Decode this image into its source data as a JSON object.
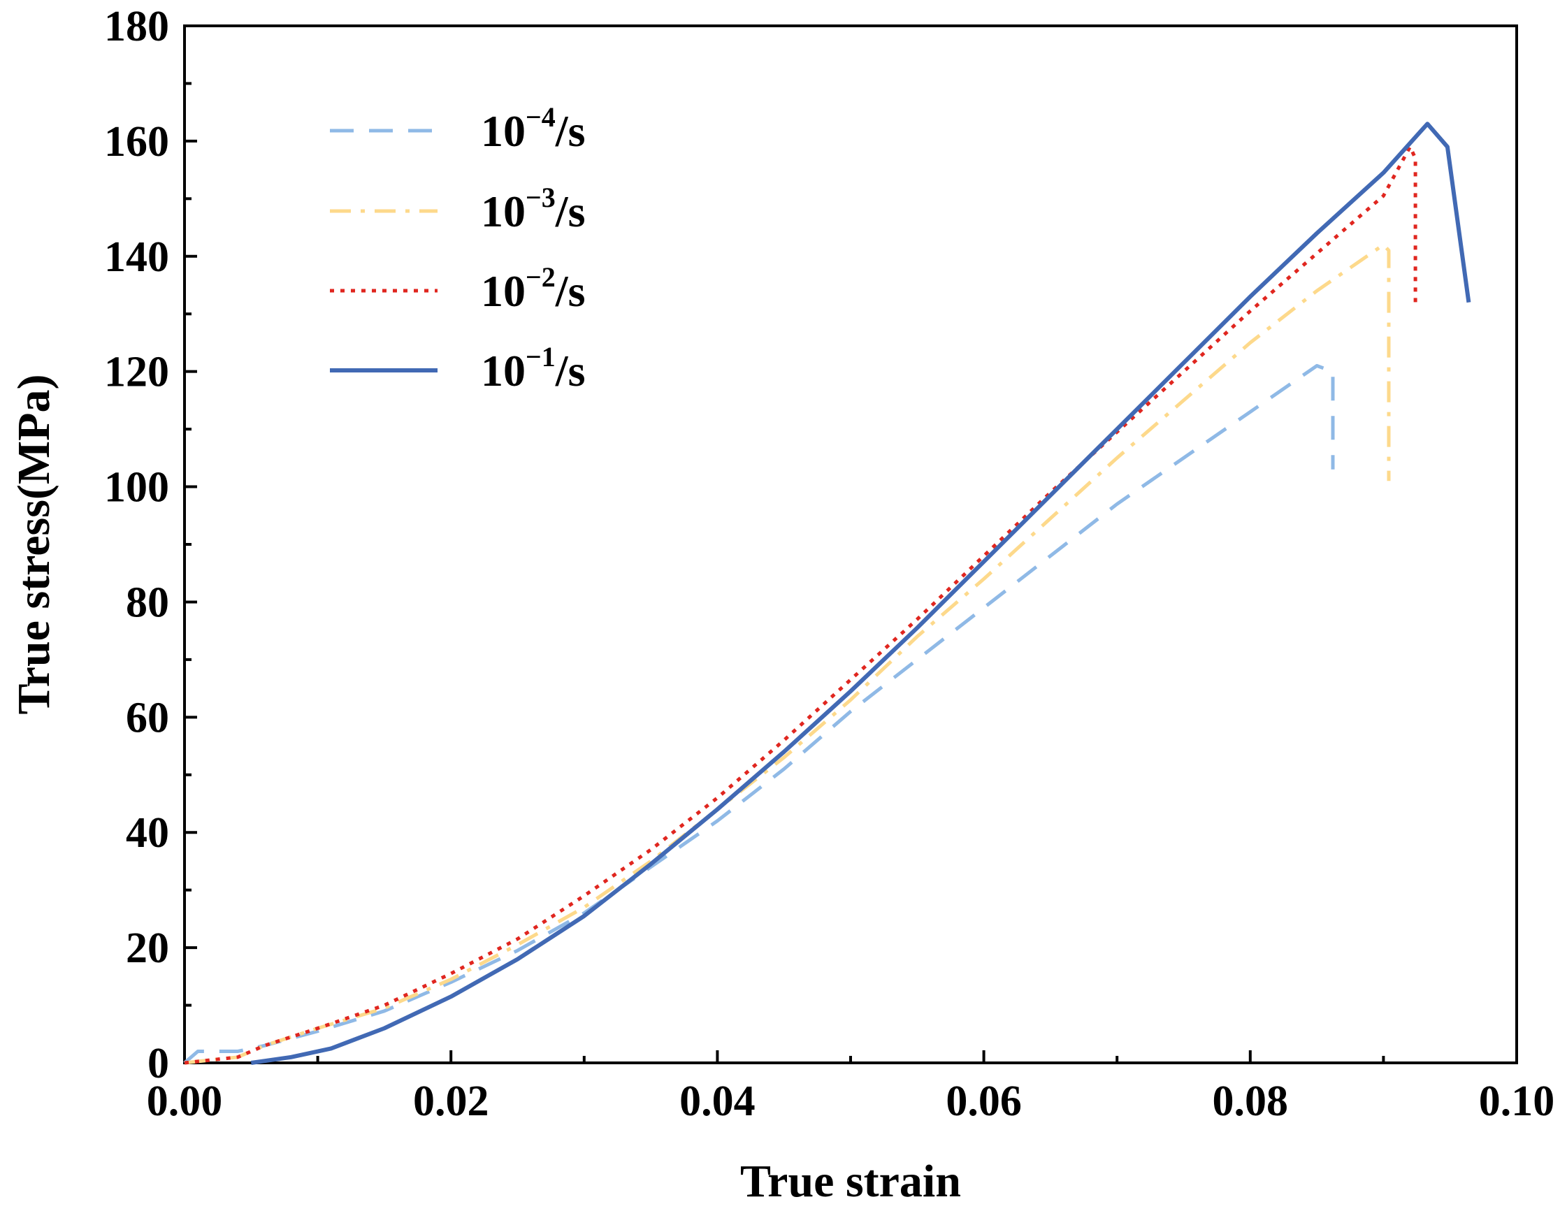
{
  "chart_data": {
    "type": "line",
    "title": "",
    "xlabel": "True strain",
    "ylabel": "True stress(MPa)",
    "xlim": [
      0,
      0.1
    ],
    "ylim": [
      0,
      180
    ],
    "xticks": [
      0.0,
      0.02,
      0.04,
      0.06,
      0.08,
      0.1
    ],
    "xtick_labels": [
      "0.00",
      "0.02",
      "0.04",
      "0.06",
      "0.08",
      "0.10"
    ],
    "yticks": [
      0,
      20,
      40,
      60,
      80,
      100,
      120,
      140,
      160,
      180
    ],
    "ytick_labels": [
      "0",
      "20",
      "40",
      "60",
      "80",
      "100",
      "120",
      "140",
      "160",
      "180"
    ],
    "grid": false,
    "legend_position": "top-left",
    "series": [
      {
        "name": "10^-4/s",
        "label_base": "10",
        "label_exp": "−4",
        "label_unit": "/s",
        "color": "#8fb9e6",
        "style": "dash",
        "x": [
          0.0,
          0.001,
          0.004,
          0.006,
          0.01,
          0.015,
          0.02,
          0.025,
          0.03,
          0.035,
          0.04,
          0.045,
          0.05,
          0.055,
          0.06,
          0.065,
          0.07,
          0.075,
          0.08,
          0.085,
          0.0862,
          0.0862,
          0.0862
        ],
        "y": [
          0,
          2,
          2,
          3,
          5.5,
          9,
          14,
          19.5,
          26,
          34,
          42,
          51,
          61,
          70,
          79,
          88,
          97,
          105,
          113,
          121,
          120,
          118,
          103
        ]
      },
      {
        "name": "10^-3/s",
        "label_base": "10",
        "label_exp": "−3",
        "label_unit": "/s",
        "color": "#fdd98b",
        "style": "dashdot",
        "x": [
          0.0,
          0.002,
          0.004,
          0.006,
          0.01,
          0.015,
          0.02,
          0.025,
          0.03,
          0.035,
          0.04,
          0.045,
          0.05,
          0.055,
          0.06,
          0.065,
          0.07,
          0.075,
          0.08,
          0.085,
          0.09,
          0.0904,
          0.0904,
          0.0904
        ],
        "y": [
          0,
          0.5,
          1,
          3,
          6,
          9.5,
          14.5,
          20.5,
          27,
          35,
          44,
          53,
          63,
          74,
          84,
          94.5,
          105,
          115,
          125,
          134,
          142,
          141,
          125,
          101
        ]
      },
      {
        "name": "10^-2/s",
        "label_base": "10",
        "label_exp": "−2",
        "label_unit": "/s",
        "color": "#e0261f",
        "style": "dot",
        "x": [
          0.0,
          0.002,
          0.004,
          0.006,
          0.01,
          0.015,
          0.02,
          0.025,
          0.03,
          0.035,
          0.04,
          0.045,
          0.05,
          0.055,
          0.06,
          0.065,
          0.07,
          0.075,
          0.08,
          0.085,
          0.09,
          0.092,
          0.0924,
          0.0924
        ],
        "y": [
          0,
          0.5,
          1,
          3,
          6,
          10,
          15.5,
          21.5,
          29,
          37,
          46,
          56,
          66.5,
          77,
          88,
          99,
          109.5,
          120,
          130.5,
          140.5,
          150.5,
          159,
          157,
          131
        ]
      },
      {
        "name": "10^-1/s",
        "label_base": "10",
        "label_exp": "−1",
        "label_unit": "/s",
        "color": "#4169b4",
        "style": "solid",
        "x": [
          0.005,
          0.008,
          0.011,
          0.015,
          0.02,
          0.025,
          0.03,
          0.035,
          0.04,
          0.045,
          0.05,
          0.055,
          0.06,
          0.065,
          0.07,
          0.075,
          0.08,
          0.085,
          0.09,
          0.0933,
          0.0948,
          0.0964
        ],
        "y": [
          0,
          1,
          2.5,
          6,
          11.5,
          18,
          25.5,
          34.5,
          44,
          54,
          64.5,
          75.5,
          87,
          98.5,
          110,
          121.5,
          133,
          144,
          154.5,
          163,
          159,
          132
        ]
      }
    ]
  }
}
